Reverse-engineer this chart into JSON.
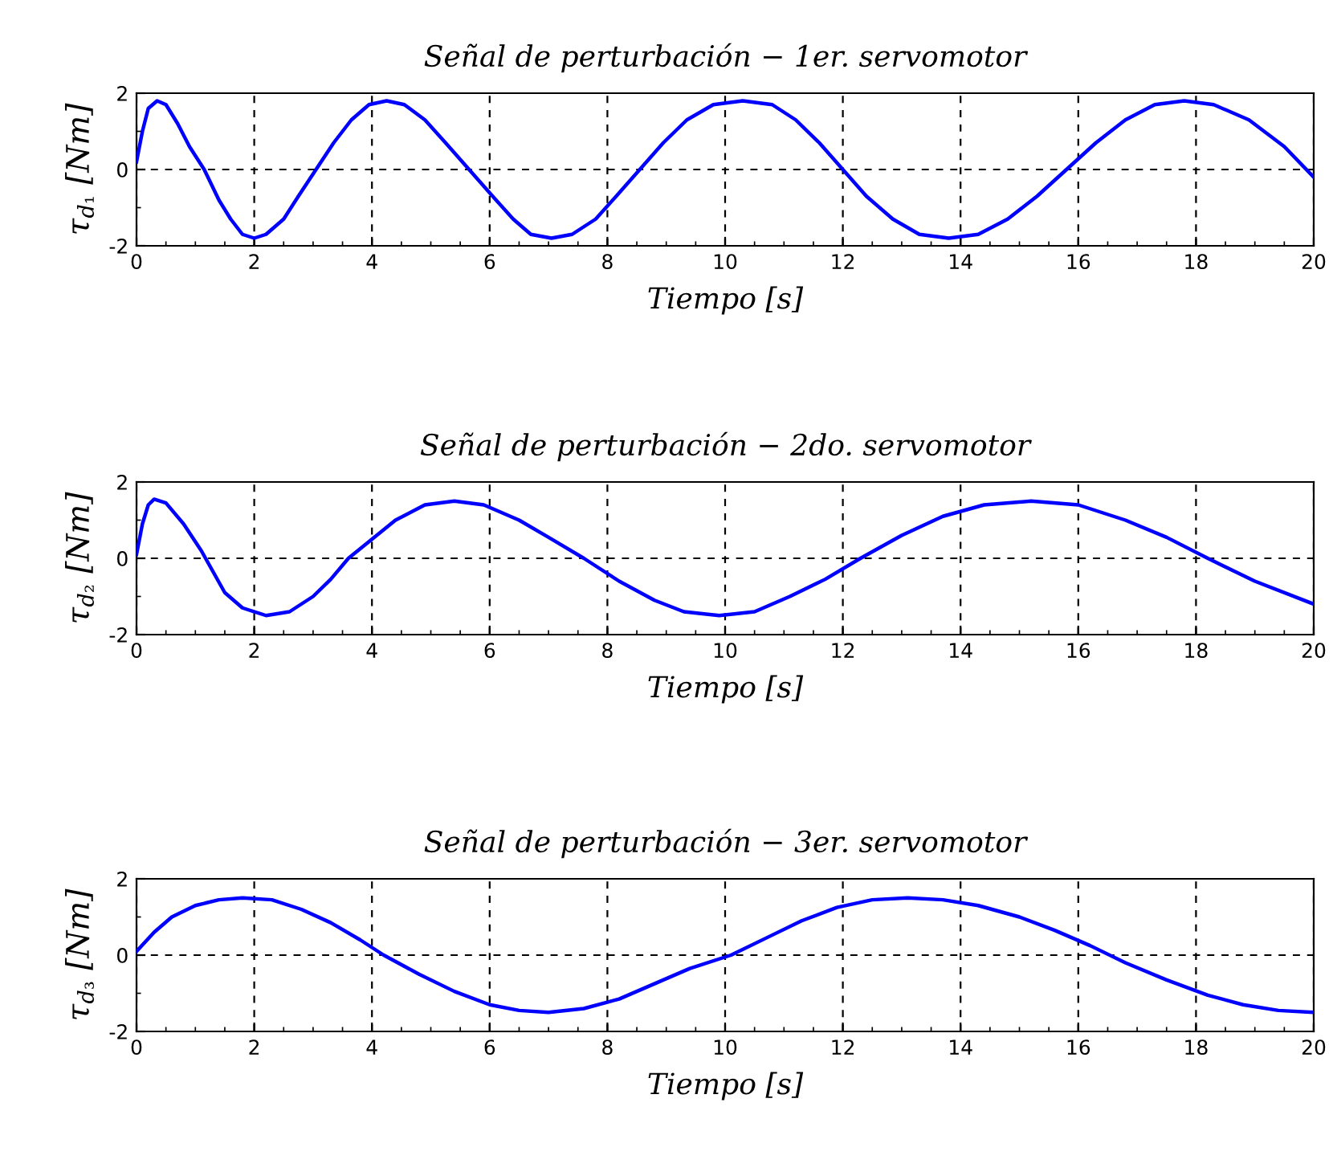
{
  "chart_data": [
    {
      "type": "line",
      "title": "Señal de perturbación − 1er. servomotor",
      "xlabel": "Tiempo [s]",
      "ylabel": "τ$_{d₁}$ [Nm]",
      "xlim": [
        0,
        20
      ],
      "ylim": [
        -2,
        2
      ],
      "xticks": [
        0,
        2,
        4,
        6,
        8,
        10,
        12,
        14,
        16,
        18,
        20
      ],
      "yticks": [
        -2,
        0,
        2
      ],
      "grid": true,
      "x": [
        0,
        0.1,
        0.2,
        0.35,
        0.5,
        0.7,
        0.9,
        1.15,
        1.4,
        1.6,
        1.8,
        2.0,
        2.2,
        2.5,
        2.75,
        3.05,
        3.35,
        3.65,
        3.95,
        4.25,
        4.55,
        4.9,
        5.25,
        5.65,
        6.05,
        6.4,
        6.7,
        7.05,
        7.4,
        7.8,
        8.15,
        8.55,
        8.95,
        9.35,
        9.8,
        10.3,
        10.8,
        11.2,
        11.6,
        12.0,
        12.4,
        12.85,
        13.3,
        13.8,
        14.3,
        14.8,
        15.3,
        15.8,
        16.3,
        16.8,
        17.3,
        17.8,
        18.3,
        18.9,
        19.5,
        20
      ],
      "series": [
        {
          "color": "#0000ff",
          "values": [
            0.2,
            1.0,
            1.6,
            1.8,
            1.7,
            1.2,
            0.6,
            0,
            -0.8,
            -1.3,
            -1.7,
            -1.8,
            -1.7,
            -1.3,
            -0.7,
            0,
            0.7,
            1.3,
            1.7,
            1.8,
            1.7,
            1.3,
            0.7,
            0,
            -0.7,
            -1.3,
            -1.7,
            -1.8,
            -1.7,
            -1.3,
            -0.7,
            0,
            0.7,
            1.3,
            1.7,
            1.8,
            1.7,
            1.3,
            0.7,
            0,
            -0.7,
            -1.3,
            -1.7,
            -1.8,
            -1.7,
            -1.3,
            -0.7,
            0,
            0.7,
            1.3,
            1.7,
            1.8,
            1.7,
            1.3,
            0.6,
            -0.2
          ]
        }
      ]
    },
    {
      "type": "line",
      "title": "Señal de perturbación − 2do. servomotor",
      "xlabel": "Tiempo [s]",
      "ylabel": "τ$_{d₂}$ [Nm]",
      "xlim": [
        0,
        20
      ],
      "ylim": [
        -2,
        2
      ],
      "xticks": [
        0,
        2,
        4,
        6,
        8,
        10,
        12,
        14,
        16,
        18,
        20
      ],
      "yticks": [
        -2,
        0,
        2
      ],
      "grid": true,
      "x": [
        0,
        0.1,
        0.2,
        0.3,
        0.5,
        0.8,
        1.1,
        1.5,
        1.8,
        2.2,
        2.6,
        3.0,
        3.3,
        3.6,
        4.0,
        4.4,
        4.9,
        5.4,
        5.9,
        6.5,
        7.0,
        7.6,
        8.2,
        8.8,
        9.3,
        9.9,
        10.5,
        11.1,
        11.7,
        12.3,
        13.0,
        13.7,
        14.4,
        15.2,
        16.0,
        16.8,
        17.5,
        18.2,
        19.0,
        20
      ],
      "series": [
        {
          "color": "#0000ff",
          "values": [
            0.1,
            0.9,
            1.4,
            1.55,
            1.45,
            0.9,
            0.2,
            -0.9,
            -1.3,
            -1.5,
            -1.4,
            -1.0,
            -0.55,
            0,
            0.5,
            1.0,
            1.4,
            1.5,
            1.4,
            1.0,
            0.55,
            0,
            -0.6,
            -1.1,
            -1.4,
            -1.5,
            -1.4,
            -1.0,
            -0.55,
            0,
            0.6,
            1.1,
            1.4,
            1.5,
            1.4,
            1.0,
            0.55,
            0,
            -0.6,
            -1.2
          ]
        }
      ]
    },
    {
      "type": "line",
      "title": "Señal de perturbación − 3er. servomotor",
      "xlabel": "Tiempo [s]",
      "ylabel": "τ$_{d₃}$ [Nm]",
      "xlim": [
        0,
        20
      ],
      "ylim": [
        -2,
        2
      ],
      "xticks": [
        0,
        2,
        4,
        6,
        8,
        10,
        12,
        14,
        16,
        18,
        20
      ],
      "yticks": [
        -2,
        0,
        2
      ],
      "grid": true,
      "x": [
        0,
        0.3,
        0.6,
        1.0,
        1.4,
        1.8,
        2.3,
        2.8,
        3.3,
        3.8,
        4.2,
        4.8,
        5.4,
        6.0,
        6.5,
        7.0,
        7.6,
        8.2,
        8.8,
        9.4,
        10.1,
        10.7,
        11.3,
        11.9,
        12.5,
        13.1,
        13.7,
        14.3,
        15.0,
        15.6,
        16.2,
        16.8,
        17.5,
        18.2,
        18.8,
        19.4,
        20
      ],
      "series": [
        {
          "color": "#0000ff",
          "values": [
            0.1,
            0.6,
            1.0,
            1.3,
            1.45,
            1.5,
            1.45,
            1.2,
            0.85,
            0.4,
            0,
            -0.5,
            -0.95,
            -1.3,
            -1.45,
            -1.5,
            -1.4,
            -1.15,
            -0.75,
            -0.35,
            0,
            0.45,
            0.9,
            1.25,
            1.45,
            1.5,
            1.45,
            1.3,
            1.0,
            0.65,
            0.25,
            -0.2,
            -0.65,
            -1.05,
            -1.3,
            -1.45,
            -1.5
          ]
        }
      ]
    }
  ]
}
